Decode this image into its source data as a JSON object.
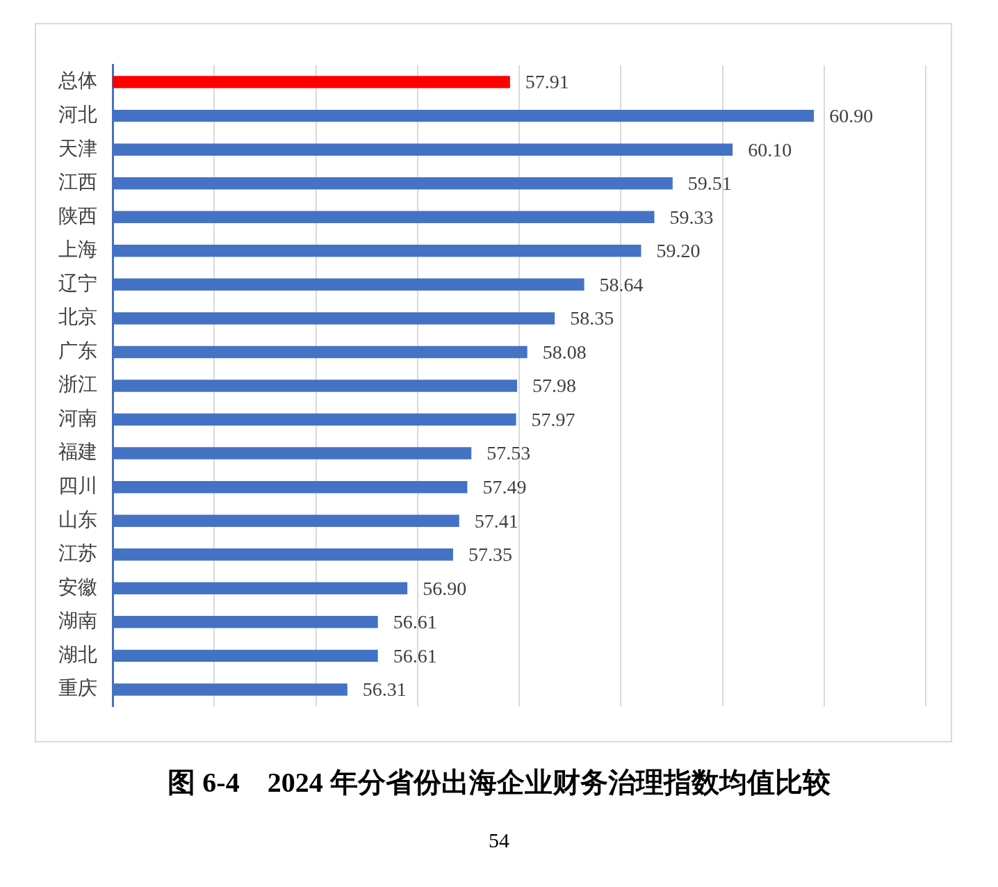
{
  "chart_data": {
    "type": "bar",
    "orientation": "horizontal",
    "title": "图 6-4　2024 年分省份出海企业财务治理指数均值比较",
    "categories": [
      "总体",
      "河北",
      "天津",
      "江西",
      "陕西",
      "上海",
      "辽宁",
      "北京",
      "广东",
      "浙江",
      "河南",
      "福建",
      "四川",
      "山东",
      "江苏",
      "安徽",
      "湖南",
      "湖北",
      "重庆"
    ],
    "values": [
      57.91,
      60.9,
      60.1,
      59.51,
      59.33,
      59.2,
      58.64,
      58.35,
      58.08,
      57.98,
      57.97,
      57.53,
      57.49,
      57.41,
      57.35,
      56.9,
      56.61,
      56.61,
      56.31
    ],
    "value_labels": [
      "57.91",
      "60.90",
      "60.10",
      "59.51",
      "59.33",
      "59.20",
      "58.64",
      "58.35",
      "58.08",
      "57.98",
      "57.97",
      "57.53",
      "57.49",
      "57.41",
      "57.35",
      "56.90",
      "56.61",
      "56.61",
      "56.31"
    ],
    "colors": [
      "#ff0000",
      "#4472c4",
      "#4472c4",
      "#4472c4",
      "#4472c4",
      "#4472c4",
      "#4472c4",
      "#4472c4",
      "#4472c4",
      "#4472c4",
      "#4472c4",
      "#4472c4",
      "#4472c4",
      "#4472c4",
      "#4472c4",
      "#4472c4",
      "#4472c4",
      "#4472c4",
      "#4472c4"
    ],
    "xlim": [
      54,
      62
    ],
    "xticks": [
      {
        "value": 54,
        "label": null
      },
      {
        "value": 55,
        "label": null
      },
      {
        "value": 56,
        "label": null
      },
      {
        "value": 57,
        "label": null
      },
      {
        "value": 58,
        "label": null
      },
      {
        "value": 59,
        "label": null
      },
      {
        "value": 60,
        "label": null
      },
      {
        "value": 61,
        "label": null
      },
      {
        "value": 62,
        "label": null
      }
    ],
    "grid": "x",
    "tick_labels": "y",
    "legend": false,
    "annotations": [
      "54"
    ]
  }
}
